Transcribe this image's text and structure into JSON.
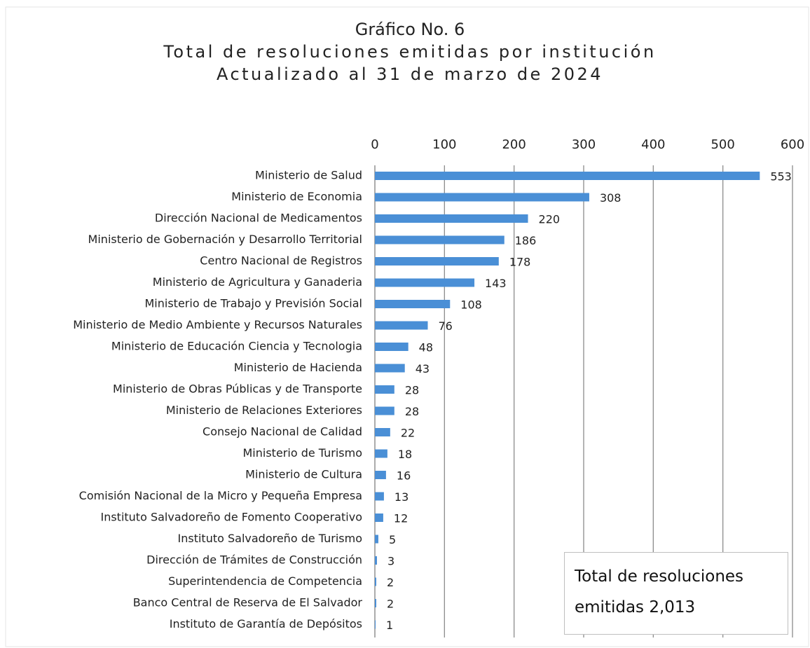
{
  "chart_data": {
    "type": "hbar",
    "title": "Gráfico No. 6",
    "subtitle": [
      "Total de resoluciones emitidas por institución",
      "Actualizado al 31 de marzo de 2024"
    ],
    "annotation": "Total de resoluciones emitidas 2,013",
    "categories": [
      "Ministerio de Salud",
      "Ministerio de Economia",
      "Dirección Nacional de Medicamentos",
      "Ministerio de Gobernación y Desarrollo Territorial",
      "Centro Nacional de Registros",
      "Ministerio de Agricultura y Ganaderia",
      "Ministerio de Trabajo y Previsión Social",
      "Ministerio de Medio Ambiente y Recursos Naturales",
      "Ministerio de Educación Ciencia y Tecnologia",
      "Ministerio de Hacienda",
      "Ministerio de Obras Públicas y de Transporte",
      "Ministerio de Relaciones Exteriores",
      "Consejo Nacional de Calidad",
      "Ministerio de Turismo",
      "Ministerio de Cultura",
      "Comisión Nacional de la Micro y Pequeña Empresa",
      "Instituto Salvadoreño de Fomento Cooperativo",
      "Instituto Salvadoreño de Turismo",
      "Dirección de Trámites de Construcción",
      "Superintendencia de Competencia",
      "Banco Central de Reserva de El Salvador",
      "Instituto de Garantía de Depósitos"
    ],
    "values": [
      553,
      308,
      220,
      186,
      178,
      143,
      108,
      76,
      48,
      43,
      28,
      28,
      22,
      18,
      16,
      13,
      12,
      5,
      3,
      2,
      2,
      1
    ],
    "color": "#4a8fd6",
    "xlim": [
      0,
      600
    ],
    "xticks": [
      0,
      100,
      200,
      300,
      400,
      500,
      600
    ],
    "grid": true
  }
}
